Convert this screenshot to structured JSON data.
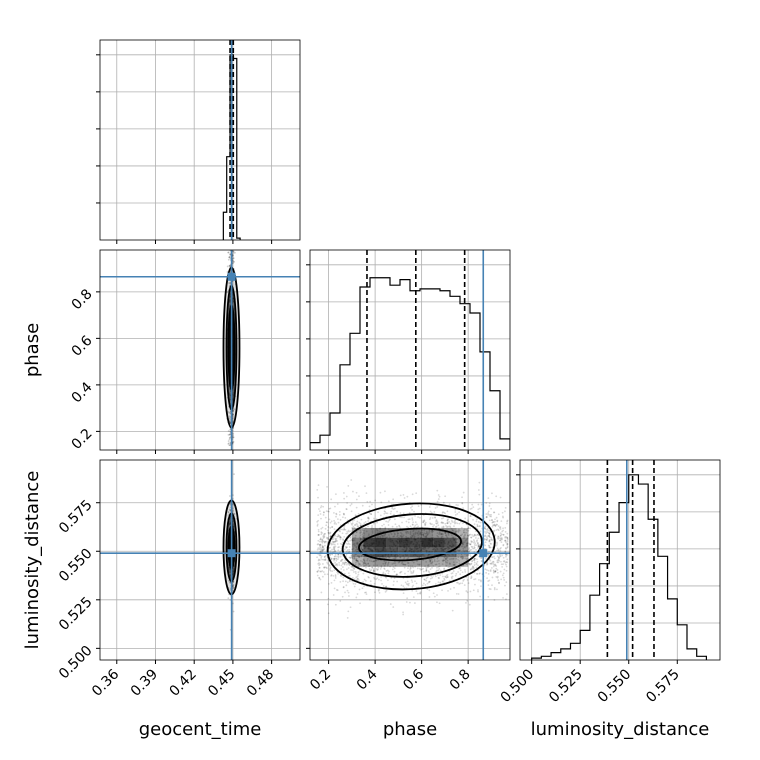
{
  "chart_data": {
    "type": "corner",
    "parameters": [
      "geocent_time",
      "phase",
      "luminosity_distance"
    ],
    "truth_color": "#4682b4",
    "ranges": {
      "geocent_time": [
        0.347,
        0.502
      ],
      "phase": [
        0.12,
        0.98
      ],
      "luminosity_distance": [
        0.494,
        0.597
      ]
    },
    "truths": {
      "geocent_time": 0.449,
      "phase": 0.865,
      "luminosity_distance": 0.549
    },
    "quantiles": {
      "geocent_time": [
        0.4478,
        0.4489,
        0.4503
      ],
      "phase": [
        0.365,
        0.575,
        0.785
      ],
      "luminosity_distance": [
        0.539,
        0.552,
        0.563
      ]
    },
    "ticks": {
      "geocent_time": {
        "values": [
          0.36,
          0.39,
          0.42,
          0.45,
          0.48
        ],
        "labels": [
          "0.36",
          "0.39",
          "0.42",
          "0.45",
          "0.48"
        ]
      },
      "phase": {
        "values": [
          0.2,
          0.4,
          0.6,
          0.8
        ],
        "labels": [
          "0.2",
          "0.4",
          "0.6",
          "0.8"
        ]
      },
      "luminosity_distance": {
        "values": [
          0.5,
          0.525,
          0.55,
          0.575
        ],
        "labels": [
          "0.500",
          "0.525",
          "0.550",
          "0.575"
        ]
      }
    },
    "histograms": {
      "geocent_time": {
        "edges": [
          0.4426,
          0.4452,
          0.4478,
          0.4504,
          0.453,
          0.4556
        ],
        "counts": [
          0.15,
          0.45,
          1.0,
          0.98,
          0.01
        ]
      },
      "phase": {
        "edges": [
          0.12,
          0.163,
          0.206,
          0.249,
          0.292,
          0.335,
          0.378,
          0.421,
          0.464,
          0.507,
          0.55,
          0.593,
          0.636,
          0.679,
          0.722,
          0.765,
          0.808,
          0.851,
          0.894,
          0.937,
          0.98
        ],
        "counts": [
          0.04,
          0.08,
          0.2,
          0.46,
          0.63,
          0.88,
          0.93,
          0.93,
          0.89,
          0.92,
          0.86,
          0.87,
          0.87,
          0.86,
          0.83,
          0.79,
          0.74,
          0.53,
          0.32,
          0.06
        ]
      },
      "luminosity_distance": {
        "edges": [
          0.5,
          0.505,
          0.51,
          0.515,
          0.52,
          0.525,
          0.53,
          0.535,
          0.54,
          0.545,
          0.55,
          0.555,
          0.56,
          0.565,
          0.57,
          0.575,
          0.58,
          0.585,
          0.59
        ],
        "counts": [
          0.01,
          0.02,
          0.04,
          0.06,
          0.09,
          0.16,
          0.35,
          0.52,
          0.69,
          0.85,
          1.0,
          0.95,
          0.76,
          0.56,
          0.33,
          0.19,
          0.06,
          0.02
        ]
      }
    },
    "grid": true
  },
  "icons": {
    "truth_marker": "square-marker"
  }
}
